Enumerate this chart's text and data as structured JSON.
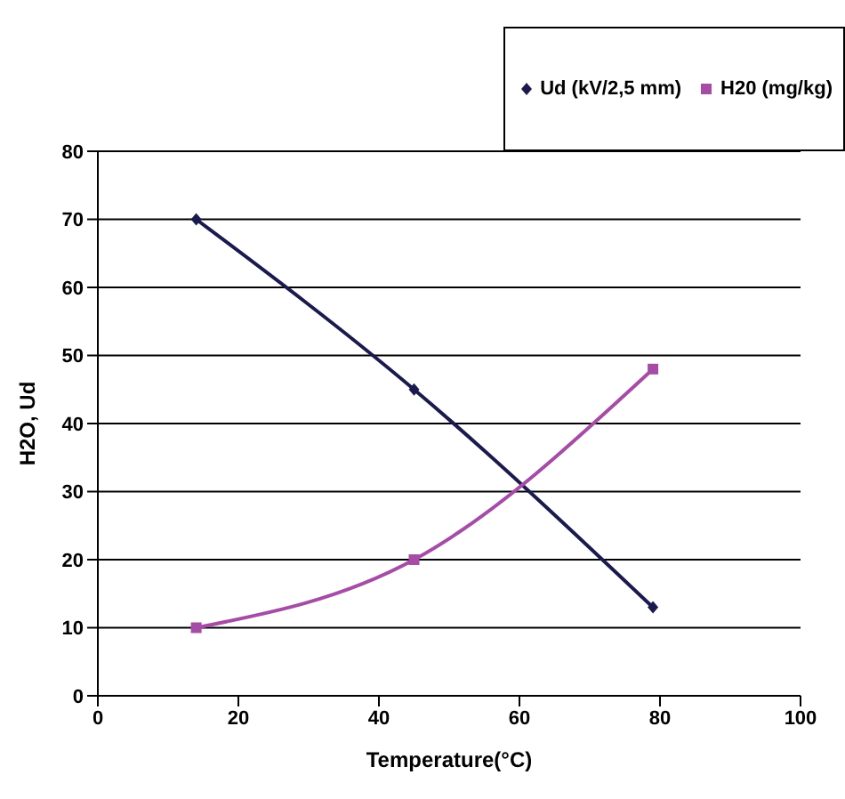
{
  "chart_data": {
    "type": "line",
    "xlabel": "Temperature(°C)",
    "ylabel": "H2O, Ud",
    "series": [
      {
        "name": "Ud (kV/2,5 mm)",
        "color": "#1a1a4e",
        "marker": "diamond",
        "x": [
          14,
          45,
          79
        ],
        "values": [
          70,
          45,
          13
        ]
      },
      {
        "name": "H20 (mg/kg)",
        "color": "#a64ca6",
        "marker": "square",
        "x": [
          14,
          45,
          79
        ],
        "values": [
          10,
          20,
          48
        ]
      }
    ],
    "xlim": [
      0,
      100
    ],
    "xticks": [
      0,
      20,
      40,
      60,
      80,
      100
    ],
    "ylim": [
      0,
      80
    ],
    "yticks": [
      0,
      10,
      20,
      30,
      40,
      50,
      60,
      70,
      80
    ],
    "grid": "y",
    "legend": "top right",
    "line_style": "solid"
  }
}
